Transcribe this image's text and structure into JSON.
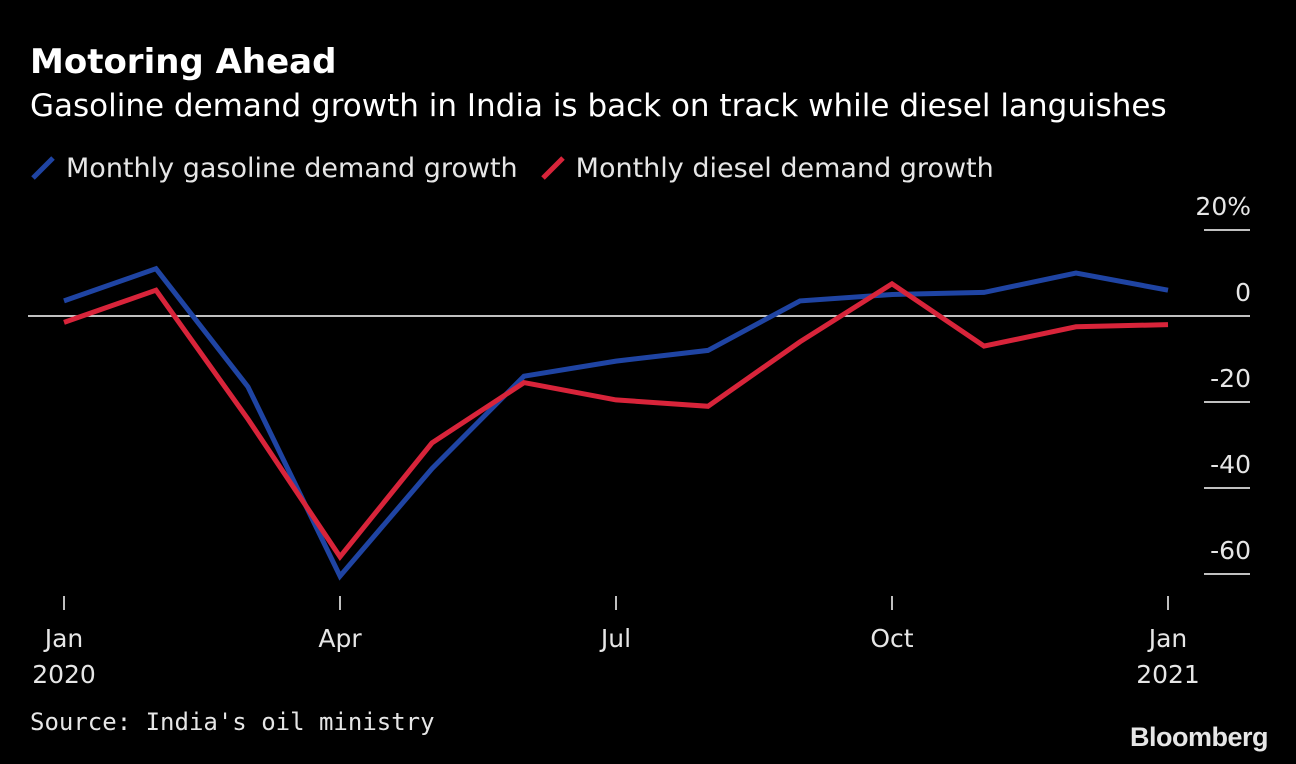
{
  "header": {
    "title": "Motoring Ahead",
    "subtitle": "Gasoline demand growth in India is back on track while diesel languishes"
  },
  "footer": {
    "source": "Source: India's oil ministry",
    "brand": "Bloomberg"
  },
  "colors": {
    "background": "#000000",
    "gasoline": "#1f44a3",
    "diesel": "#d8243a",
    "zero_line": "#ffffff",
    "text": "#e6e6e6"
  },
  "chart_data": {
    "type": "line",
    "title": "Motoring Ahead",
    "subtitle": "Gasoline demand growth in India is back on track while diesel languishes",
    "x": [
      "2020-01",
      "2020-02",
      "2020-03",
      "2020-04",
      "2020-05",
      "2020-06",
      "2020-07",
      "2020-08",
      "2020-09",
      "2020-10",
      "2020-11",
      "2020-12",
      "2021-01"
    ],
    "x_ticks": [
      {
        "month": "2020-01",
        "label": "Jan",
        "sublabel": "2020"
      },
      {
        "month": "2020-04",
        "label": "Apr",
        "sublabel": ""
      },
      {
        "month": "2020-07",
        "label": "Jul",
        "sublabel": ""
      },
      {
        "month": "2020-10",
        "label": "Oct",
        "sublabel": ""
      },
      {
        "month": "2021-01",
        "label": "Jan",
        "sublabel": "2021"
      }
    ],
    "y_ticks": [
      {
        "value": 20,
        "label": "20%"
      },
      {
        "value": 0,
        "label": "0"
      },
      {
        "value": -20,
        "label": "-20"
      },
      {
        "value": -40,
        "label": "-40"
      },
      {
        "value": -60,
        "label": "-60"
      }
    ],
    "ylim": [
      -67,
      24
    ],
    "y_axis_position": "right",
    "grid": false,
    "zero_line": true,
    "legend_position": "top-left",
    "series": [
      {
        "name": "Monthly gasoline demand growth",
        "color": "#1f44a3",
        "values": [
          3.5,
          11,
          -16.5,
          -60.5,
          -35.5,
          -14,
          -10.5,
          -8,
          3.5,
          5,
          5.5,
          10,
          6
        ]
      },
      {
        "name": "Monthly diesel demand growth",
        "color": "#d8243a",
        "values": [
          -1.5,
          6,
          -24,
          -56,
          -29.5,
          -15.5,
          -19.5,
          -21,
          -6,
          7.5,
          -7,
          -2.5,
          -2
        ]
      }
    ]
  }
}
